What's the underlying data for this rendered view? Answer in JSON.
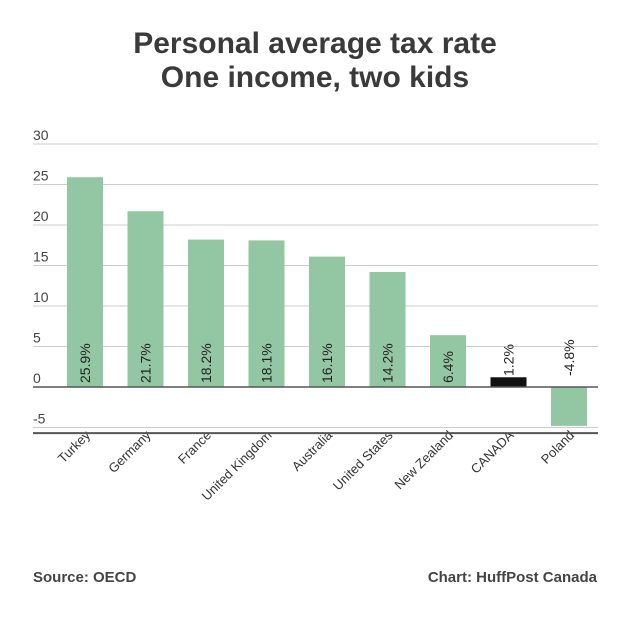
{
  "header": {
    "title_line1": "Personal average tax rate",
    "title_line2": "One income, two kids"
  },
  "footer": {
    "source": "Source: OECD",
    "credit": "Chart: HuffPost Canada"
  },
  "colors": {
    "bar": "#93c7a4",
    "highlight": "#111111",
    "grid": "#cccccc",
    "baseline": "#555555"
  },
  "chart_data": {
    "type": "bar",
    "title": "Personal average tax rate\nOne income, two kids",
    "categories": [
      "Turkey",
      "Germany",
      "France",
      "United Kingdom",
      "Australia",
      "United States",
      "New Zealand",
      "CANADA",
      "Poland"
    ],
    "values": [
      25.9,
      21.7,
      18.2,
      18.1,
      16.1,
      14.2,
      6.4,
      1.2,
      -4.8
    ],
    "data_labels": [
      "25.9%",
      "21.7%",
      "18.2%",
      "18.1%",
      "16.1%",
      "14.2%",
      "6.4%",
      "1.2%",
      "-4.8%"
    ],
    "highlight_category": "CANADA",
    "yticks": [
      "30",
      "25",
      "20",
      "15",
      "10",
      "5",
      "0",
      "-5"
    ],
    "ylim": [
      -5,
      30
    ],
    "grid": true,
    "legend": "none"
  }
}
